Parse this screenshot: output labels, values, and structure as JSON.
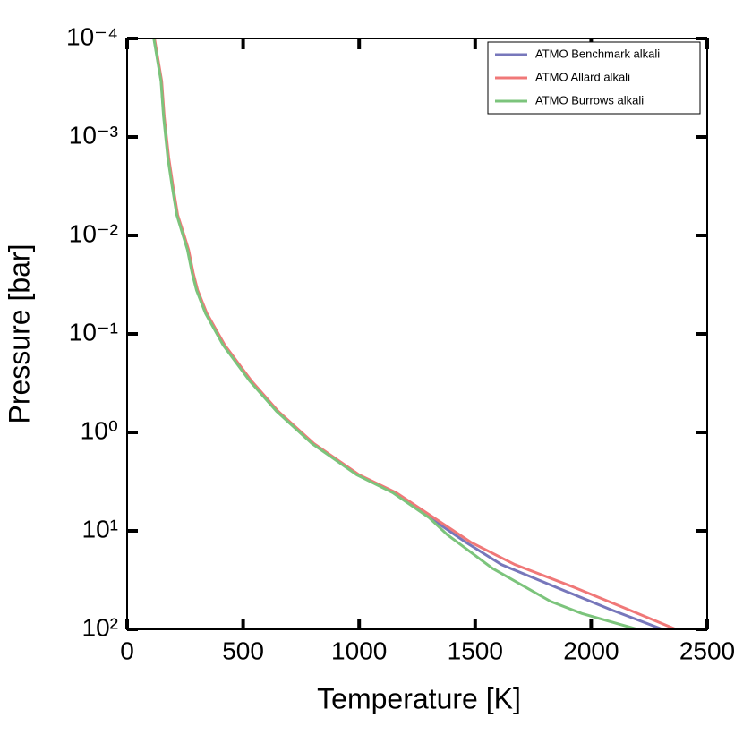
{
  "chart_data": {
    "type": "line",
    "xlabel": "Temperature [K]",
    "ylabel": "Pressure [bar]",
    "xlim": [
      0,
      2500
    ],
    "xticks": [
      0,
      500,
      1000,
      1500,
      2000,
      2500
    ],
    "ylim": [
      0.0001,
      100
    ],
    "yscale": "log",
    "y_inverted": true,
    "yticks": [
      {
        "value": 0.0001,
        "label": "10⁻⁴"
      },
      {
        "value": 0.001,
        "label": "10⁻³"
      },
      {
        "value": 0.01,
        "label": "10⁻²"
      },
      {
        "value": 0.1,
        "label": "10⁻¹"
      },
      {
        "value": 1,
        "label": "10⁰"
      },
      {
        "value": 10,
        "label": "10¹"
      },
      {
        "value": 100,
        "label": "10²"
      }
    ],
    "legend": "upper right",
    "series": [
      {
        "name": "ATMO Benchmark alkali",
        "color": "#7777bb",
        "x": [
          116,
          147,
          158,
          177,
          197,
          216,
          243,
          262,
          282,
          301,
          340,
          417,
          532,
          648,
          802,
          995,
          1150,
          1304,
          1458,
          1613,
          1844,
          2076,
          2307
        ],
        "values": [
          0.0001,
          0.00027,
          0.00062,
          0.0016,
          0.0033,
          0.0062,
          0.01,
          0.014,
          0.024,
          0.036,
          0.062,
          0.13,
          0.3,
          0.61,
          1.3,
          2.7,
          4.1,
          7.3,
          13,
          22,
          37,
          62,
          100
        ]
      },
      {
        "name": "ATMO Allard alkali",
        "color": "#f07878",
        "x": [
          118,
          149,
          160,
          179,
          199,
          218,
          246,
          265,
          285,
          304,
          344,
          421,
          536,
          651,
          805,
          1000,
          1160,
          1320,
          1480,
          1671,
          1921,
          2153,
          2365
        ],
        "values": [
          0.0001,
          0.00027,
          0.00062,
          0.0016,
          0.0033,
          0.0062,
          0.01,
          0.014,
          0.024,
          0.036,
          0.062,
          0.13,
          0.3,
          0.61,
          1.3,
          2.7,
          4.1,
          7.3,
          13,
          22,
          37,
          62,
          100
        ]
      },
      {
        "name": "ATMO Burrows alkali",
        "color": "#7cc47c",
        "x": [
          115,
          146,
          157,
          175,
          195,
          214,
          241,
          260,
          280,
          299,
          338,
          414,
          528,
          644,
          797,
          990,
          1145,
          1300,
          1381,
          1574,
          1825,
          1960,
          2199
        ],
        "values": [
          0.0001,
          0.00027,
          0.00062,
          0.0016,
          0.0033,
          0.0062,
          0.01,
          0.014,
          0.024,
          0.036,
          0.062,
          0.13,
          0.3,
          0.61,
          1.3,
          2.7,
          4.1,
          7.3,
          11,
          24,
          52,
          69,
          100
        ]
      }
    ]
  }
}
